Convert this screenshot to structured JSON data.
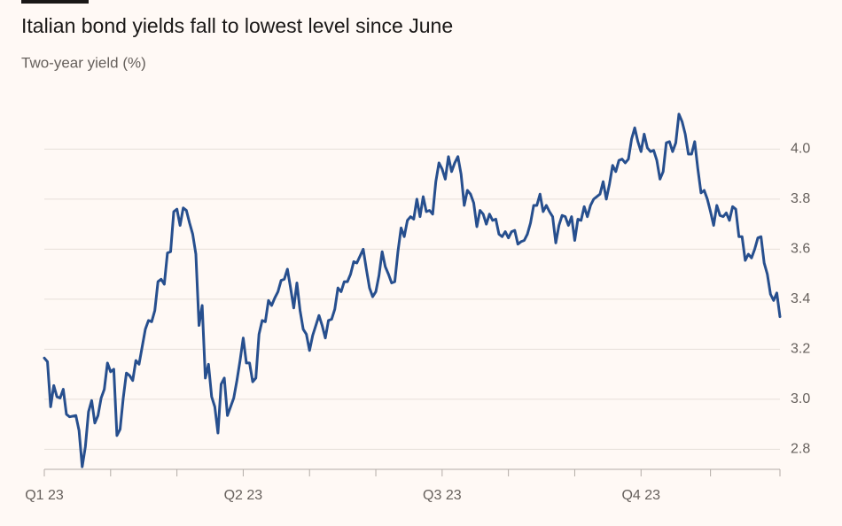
{
  "chart_data": {
    "type": "line",
    "title": "Italian bond yields fall to lowest level since June",
    "subtitle": "Two-year yield (%)",
    "color": "#274f8e",
    "grid": true,
    "xlim": [
      0,
      233
    ],
    "xticks": [
      {
        "value": 0,
        "label": "Q1 23"
      },
      21,
      42,
      {
        "value": 63,
        "label": "Q2 23"
      },
      84,
      105,
      {
        "value": 126,
        "label": "Q3 23"
      },
      147,
      168,
      {
        "value": 189,
        "label": "Q4 23"
      },
      211,
      233
    ],
    "ylim": [
      2.72,
      4.15
    ],
    "yticks": [
      2.8,
      {
        "value": 3.0,
        "label": "3.0"
      },
      3.2,
      3.4,
      3.6,
      3.8,
      {
        "value": 4.0,
        "label": "4.0"
      }
    ],
    "x": [
      0,
      1,
      2,
      3,
      4,
      5,
      6,
      7,
      8,
      10,
      11,
      12,
      13,
      14,
      15,
      16,
      17,
      18,
      19,
      20,
      21,
      22,
      23,
      24,
      25,
      26,
      27,
      28,
      29,
      30,
      31,
      32,
      33,
      34,
      35,
      36,
      37,
      38,
      39,
      40,
      41,
      42,
      43,
      44,
      45,
      46,
      47,
      48,
      49,
      50,
      51,
      52,
      53,
      54,
      55,
      56,
      57,
      58,
      60,
      61,
      62,
      63,
      64,
      65,
      66,
      67,
      68,
      69,
      70,
      71,
      72,
      73,
      74,
      75,
      76,
      77,
      78,
      79,
      80,
      81,
      82,
      83,
      84,
      85,
      86,
      87,
      88,
      89,
      90,
      91,
      92,
      93,
      94,
      95,
      96,
      97,
      98,
      99,
      101,
      102,
      103,
      104,
      105,
      106,
      107,
      108,
      109,
      110,
      111,
      112,
      113,
      114,
      115,
      116,
      117,
      118,
      119,
      120,
      121,
      122,
      123,
      124,
      125,
      126,
      127,
      128,
      129,
      130,
      131,
      132,
      133,
      134,
      135,
      136,
      137,
      138,
      139,
      140,
      141,
      142,
      143,
      144,
      145,
      146,
      147,
      148,
      149,
      150,
      151,
      152,
      153,
      154,
      155,
      156,
      157,
      158,
      159,
      160,
      161,
      162,
      163,
      164,
      165,
      166,
      167,
      168,
      169,
      170,
      171,
      172,
      173,
      174,
      175,
      176,
      177,
      178,
      179,
      180,
      181,
      182,
      183,
      184,
      185,
      186,
      187,
      188,
      189,
      190,
      191,
      192,
      193,
      194,
      195,
      196,
      197,
      198,
      199,
      200,
      201,
      202,
      203,
      204,
      205,
      206,
      207,
      208,
      209,
      210,
      211,
      212,
      213,
      214,
      215,
      216,
      217,
      218,
      219,
      220,
      221,
      222,
      223,
      224,
      225,
      226,
      227,
      228,
      229,
      230,
      231,
      232,
      233
    ],
    "values": [
      3.165,
      3.15,
      2.97,
      3.055,
      3.01,
      3.005,
      3.04,
      2.94,
      2.93,
      2.935,
      2.875,
      2.73,
      2.81,
      2.95,
      2.995,
      2.905,
      2.935,
      3.005,
      3.04,
      3.145,
      3.11,
      3.12,
      2.855,
      2.88,
      3.005,
      3.105,
      3.095,
      3.075,
      3.155,
      3.14,
      3.21,
      3.28,
      3.315,
      3.31,
      3.355,
      3.47,
      3.48,
      3.46,
      3.585,
      3.59,
      3.75,
      3.76,
      3.695,
      3.765,
      3.755,
      3.705,
      3.66,
      3.58,
      3.295,
      3.375,
      3.085,
      3.14,
      3.01,
      2.97,
      2.865,
      3.06,
      3.085,
      2.935,
      3.005,
      3.075,
      3.155,
      3.245,
      3.145,
      3.145,
      3.07,
      3.085,
      3.26,
      3.315,
      3.31,
      3.395,
      3.375,
      3.405,
      3.43,
      3.475,
      3.48,
      3.52,
      3.445,
      3.365,
      3.465,
      3.355,
      3.28,
      3.26,
      3.195,
      3.255,
      3.295,
      3.335,
      3.295,
      3.245,
      3.315,
      3.32,
      3.36,
      3.445,
      3.43,
      3.47,
      3.47,
      3.5,
      3.55,
      3.545,
      3.6,
      3.52,
      3.445,
      3.41,
      3.43,
      3.495,
      3.59,
      3.53,
      3.5,
      3.465,
      3.47,
      3.59,
      3.685,
      3.65,
      3.715,
      3.73,
      3.72,
      3.8,
      3.73,
      3.81,
      3.75,
      3.755,
      3.74,
      3.87,
      3.945,
      3.92,
      3.88,
      3.97,
      3.91,
      3.945,
      3.97,
      3.9,
      3.775,
      3.835,
      3.82,
      3.785,
      3.69,
      3.755,
      3.74,
      3.7,
      3.74,
      3.715,
      3.72,
      3.66,
      3.65,
      3.67,
      3.645,
      3.67,
      3.675,
      3.62,
      3.63,
      3.635,
      3.66,
      3.705,
      3.775,
      3.775,
      3.82,
      3.75,
      3.775,
      3.75,
      3.73,
      3.625,
      3.695,
      3.735,
      3.73,
      3.695,
      3.73,
      3.635,
      3.72,
      3.715,
      3.77,
      3.73,
      3.775,
      3.8,
      3.81,
      3.82,
      3.87,
      3.8,
      3.86,
      3.935,
      3.91,
      3.955,
      3.96,
      3.945,
      3.96,
      4.04,
      4.085,
      4.03,
      3.99,
      4.06,
      4.005,
      3.99,
      3.995,
      3.955,
      3.88,
      3.91,
      4.025,
      4.03,
      3.99,
      4.025,
      4.14,
      4.11,
      4.06,
      3.98,
      3.98,
      4.03,
      3.92,
      3.825,
      3.835,
      3.8,
      3.75,
      3.695,
      3.775,
      3.735,
      3.73,
      3.745,
      3.715,
      3.77,
      3.76,
      3.65,
      3.65,
      3.555,
      3.58,
      3.565,
      3.6,
      3.645,
      3.65,
      3.545,
      3.5,
      3.42,
      3.395,
      3.425,
      3.33
    ]
  }
}
